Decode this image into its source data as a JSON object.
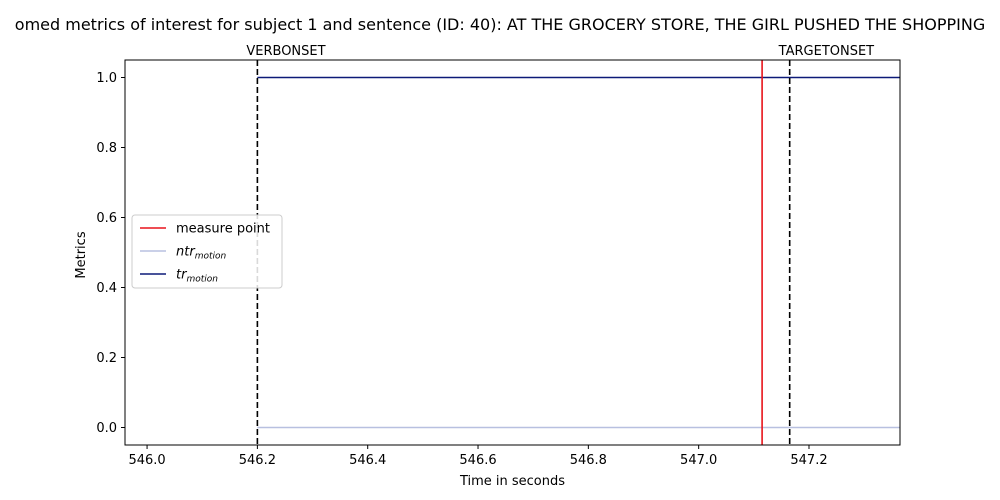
{
  "chart_data": {
    "type": "line",
    "title": "omed metrics of interest for subject 1 and sentence (ID: 40): AT THE GROCERY STORE, THE GIRL PUSHED THE SHOPPING",
    "xlabel": "Time in seconds",
    "ylabel": "Metrics",
    "xlim": [
      545.96,
      547.365
    ],
    "ylim": [
      -0.05,
      1.05
    ],
    "xticks": [
      546.0,
      546.2,
      546.4,
      546.6,
      546.8,
      547.0,
      547.2
    ],
    "xtick_labels": [
      "546.0",
      "546.2",
      "546.4",
      "546.6",
      "546.8",
      "547.0",
      "547.2"
    ],
    "yticks": [
      0.0,
      0.2,
      0.4,
      0.6,
      0.8,
      1.0
    ],
    "ytick_labels": [
      "0.0",
      "0.2",
      "0.4",
      "0.6",
      "0.8",
      "1.0"
    ],
    "series": [
      {
        "key": "ntr_motion",
        "base": "ntr",
        "sub": "motion",
        "color": "#b8c0e0",
        "x": [
          546.2,
          547.365
        ],
        "y": [
          0.0,
          0.0
        ]
      },
      {
        "key": "tr_motion",
        "base": "tr",
        "sub": "motion",
        "color": "#0d1a78",
        "x": [
          546.2,
          547.365
        ],
        "y": [
          1.0,
          1.0
        ]
      }
    ],
    "vlines": [
      {
        "name": "VERBONSET",
        "label": "VERBONSET",
        "x": 546.2,
        "color": "#000000",
        "style": "dashed"
      },
      {
        "name": "TARGETONSET",
        "label": "TARGETONSET",
        "x": 547.165,
        "color": "#000000",
        "style": "dashed"
      },
      {
        "name": "measure-point",
        "label": "measure point",
        "x": 547.115,
        "color": "#e8141b",
        "style": "solid"
      }
    ],
    "legend": {
      "placement": "center-left",
      "entries": [
        {
          "label": "measure point",
          "color": "#e8141b",
          "base": "",
          "sub": ""
        },
        {
          "label": "",
          "color": "#b8c0e0",
          "base": "ntr",
          "sub": "motion"
        },
        {
          "label": "",
          "color": "#0d1a78",
          "base": "tr",
          "sub": "motion"
        }
      ]
    },
    "grid": false
  }
}
